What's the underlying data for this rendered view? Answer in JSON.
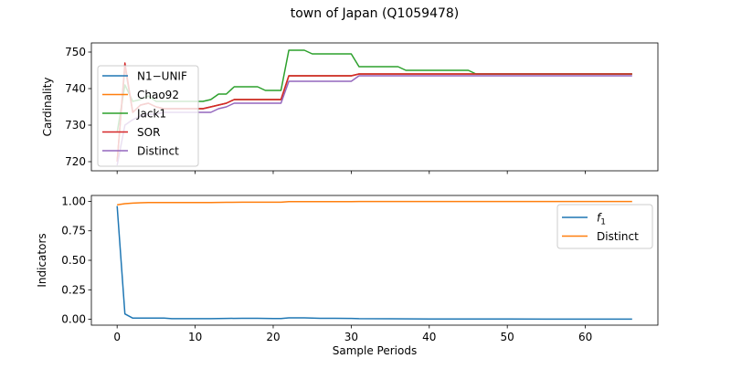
{
  "figure": {
    "title": "town of Japan (Q1059478)"
  },
  "chart_data": [
    {
      "type": "line",
      "ylabel": "Cardinality",
      "xlabel": "",
      "xlim": [
        -3.3,
        69.3
      ],
      "ylim": [
        717.5,
        752.5
      ],
      "yticks": [
        720,
        730,
        740,
        750
      ],
      "xticks": [
        0,
        10,
        20,
        30,
        40,
        50,
        60
      ],
      "show_xticklabels": false,
      "grid": false,
      "legend": "center-left",
      "series": [
        {
          "name": "N1−UNIF",
          "color": "#1f77b4",
          "points": [
            [
              0,
              720
            ],
            [
              1,
              746
            ],
            [
              2,
              733.5
            ],
            [
              3,
              735.5
            ],
            [
              4,
              736
            ],
            [
              5,
              735
            ],
            [
              6,
              734.5
            ],
            [
              7,
              734.5
            ],
            [
              8,
              734.5
            ],
            [
              9,
              734.5
            ],
            [
              10,
              734.5
            ],
            [
              11,
              734.5
            ],
            [
              12,
              735
            ],
            [
              13,
              735.5
            ],
            [
              14,
              736
            ],
            [
              15,
              737
            ],
            [
              16,
              737
            ],
            [
              17,
              737
            ],
            [
              18,
              737
            ],
            [
              19,
              737
            ],
            [
              20,
              737
            ],
            [
              21,
              737
            ],
            [
              22,
              743.5
            ],
            [
              23,
              743.5
            ],
            [
              24,
              743.5
            ],
            [
              25,
              743.5
            ],
            [
              26,
              743.5
            ],
            [
              27,
              743.5
            ],
            [
              28,
              743.5
            ],
            [
              29,
              743.5
            ],
            [
              30,
              743.5
            ],
            [
              31,
              744
            ],
            [
              35,
              744
            ],
            [
              40,
              744
            ],
            [
              45,
              744
            ],
            [
              50,
              744
            ],
            [
              55,
              744
            ],
            [
              60,
              744
            ],
            [
              66,
              744
            ]
          ]
        },
        {
          "name": "Chao92",
          "color": "#ff7f0e",
          "points": [
            [
              0,
              720
            ],
            [
              1,
              746.5
            ],
            [
              2,
              733.5
            ],
            [
              3,
              735.5
            ],
            [
              4,
              736
            ],
            [
              5,
              735
            ],
            [
              6,
              734.5
            ],
            [
              7,
              734.5
            ],
            [
              8,
              734.5
            ],
            [
              9,
              734.5
            ],
            [
              10,
              734.5
            ],
            [
              11,
              734.5
            ],
            [
              12,
              735
            ],
            [
              13,
              735.5
            ],
            [
              14,
              736
            ],
            [
              15,
              737
            ],
            [
              16,
              737
            ],
            [
              17,
              737
            ],
            [
              18,
              737
            ],
            [
              19,
              737
            ],
            [
              20,
              737
            ],
            [
              21,
              737
            ],
            [
              22,
              743.5
            ],
            [
              23,
              743.5
            ],
            [
              24,
              743.5
            ],
            [
              25,
              743.5
            ],
            [
              26,
              743.5
            ],
            [
              27,
              743.5
            ],
            [
              28,
              743.5
            ],
            [
              29,
              743.5
            ],
            [
              30,
              743.5
            ],
            [
              31,
              744
            ],
            [
              35,
              744
            ],
            [
              40,
              744
            ],
            [
              45,
              744
            ],
            [
              50,
              744
            ],
            [
              55,
              744
            ],
            [
              60,
              744
            ],
            [
              66,
              744
            ]
          ]
        },
        {
          "name": "Jack1",
          "color": "#2ca02c",
          "points": [
            [
              0,
              728
            ],
            [
              1,
              741
            ],
            [
              2,
              736.5
            ],
            [
              3,
              737
            ],
            [
              4,
              738
            ],
            [
              5,
              736.5
            ],
            [
              6,
              736.5
            ],
            [
              7,
              736.5
            ],
            [
              8,
              736.5
            ],
            [
              9,
              736.5
            ],
            [
              10,
              736.5
            ],
            [
              11,
              736.5
            ],
            [
              12,
              737
            ],
            [
              13,
              738.5
            ],
            [
              14,
              738.5
            ],
            [
              15,
              740.5
            ],
            [
              16,
              740.5
            ],
            [
              17,
              740.5
            ],
            [
              18,
              740.5
            ],
            [
              19,
              739.5
            ],
            [
              20,
              739.5
            ],
            [
              21,
              739.5
            ],
            [
              22,
              750.5
            ],
            [
              23,
              750.5
            ],
            [
              24,
              750.5
            ],
            [
              25,
              749.5
            ],
            [
              26,
              749.5
            ],
            [
              27,
              749.5
            ],
            [
              28,
              749.5
            ],
            [
              29,
              749.5
            ],
            [
              30,
              749.5
            ],
            [
              31,
              746
            ],
            [
              32,
              746
            ],
            [
              33,
              746
            ],
            [
              34,
              746
            ],
            [
              35,
              746
            ],
            [
              36,
              746
            ],
            [
              37,
              745
            ],
            [
              38,
              745
            ],
            [
              39,
              745
            ],
            [
              40,
              745
            ],
            [
              41,
              745
            ],
            [
              42,
              745
            ],
            [
              43,
              745
            ],
            [
              44,
              745
            ],
            [
              45,
              745
            ],
            [
              46,
              744
            ],
            [
              50,
              744
            ],
            [
              55,
              744
            ],
            [
              60,
              744
            ],
            [
              66,
              744
            ]
          ]
        },
        {
          "name": "SOR",
          "color": "#d62728",
          "points": [
            [
              0,
              720
            ],
            [
              1,
              747
            ],
            [
              2,
              733.5
            ],
            [
              3,
              735.5
            ],
            [
              4,
              736
            ],
            [
              5,
              735
            ],
            [
              6,
              734.5
            ],
            [
              7,
              734.5
            ],
            [
              8,
              734.5
            ],
            [
              9,
              734.5
            ],
            [
              10,
              734.5
            ],
            [
              11,
              734.5
            ],
            [
              12,
              735
            ],
            [
              13,
              735.5
            ],
            [
              14,
              736
            ],
            [
              15,
              737
            ],
            [
              16,
              737
            ],
            [
              17,
              737
            ],
            [
              18,
              737
            ],
            [
              19,
              737
            ],
            [
              20,
              737
            ],
            [
              21,
              737
            ],
            [
              22,
              743.5
            ],
            [
              23,
              743.5
            ],
            [
              24,
              743.5
            ],
            [
              25,
              743.5
            ],
            [
              26,
              743.5
            ],
            [
              27,
              743.5
            ],
            [
              28,
              743.5
            ],
            [
              29,
              743.5
            ],
            [
              30,
              743.5
            ],
            [
              31,
              744
            ],
            [
              35,
              744
            ],
            [
              40,
              744
            ],
            [
              45,
              744
            ],
            [
              50,
              744
            ],
            [
              55,
              744
            ],
            [
              60,
              744
            ],
            [
              66,
              744
            ]
          ]
        },
        {
          "name": "Distinct",
          "color": "#9467bd",
          "points": [
            [
              0,
              719
            ],
            [
              1,
              730
            ],
            [
              2,
              731.5
            ],
            [
              3,
              732.5
            ],
            [
              4,
              733
            ],
            [
              5,
              733
            ],
            [
              6,
              733.5
            ],
            [
              7,
              733.5
            ],
            [
              8,
              733.5
            ],
            [
              9,
              733.5
            ],
            [
              10,
              733.5
            ],
            [
              11,
              733.5
            ],
            [
              12,
              733.5
            ],
            [
              13,
              734.5
            ],
            [
              14,
              735
            ],
            [
              15,
              736
            ],
            [
              16,
              736
            ],
            [
              17,
              736
            ],
            [
              18,
              736
            ],
            [
              19,
              736
            ],
            [
              20,
              736
            ],
            [
              21,
              736
            ],
            [
              22,
              742
            ],
            [
              23,
              742
            ],
            [
              24,
              742
            ],
            [
              25,
              742
            ],
            [
              26,
              742
            ],
            [
              27,
              742
            ],
            [
              28,
              742
            ],
            [
              29,
              742
            ],
            [
              30,
              742
            ],
            [
              31,
              743.5
            ],
            [
              35,
              743.5
            ],
            [
              40,
              743.5
            ],
            [
              45,
              743.5
            ],
            [
              50,
              743.5
            ],
            [
              55,
              743.5
            ],
            [
              60,
              743.5
            ],
            [
              66,
              743.5
            ]
          ]
        }
      ]
    },
    {
      "type": "line",
      "ylabel": "Indicators",
      "xlabel": "Sample Periods",
      "xlim": [
        -3.3,
        69.3
      ],
      "ylim": [
        -0.05,
        1.05
      ],
      "yticks": [
        0.0,
        0.25,
        0.5,
        0.75,
        1.0
      ],
      "ytick_labels": [
        "0.00",
        "0.25",
        "0.50",
        "0.75",
        "1.00"
      ],
      "xticks": [
        0,
        10,
        20,
        30,
        40,
        50,
        60
      ],
      "show_xticklabels": true,
      "grid": false,
      "legend": "upper-right",
      "series": [
        {
          "name": "f",
          "name_sub": "1",
          "color": "#1f77b4",
          "points": [
            [
              0,
              0.96
            ],
            [
              1,
              0.045
            ],
            [
              2,
              0.01
            ],
            [
              3,
              0.01
            ],
            [
              4,
              0.01
            ],
            [
              5,
              0.01
            ],
            [
              6,
              0.01
            ],
            [
              7,
              0.005
            ],
            [
              8,
              0.005
            ],
            [
              10,
              0.005
            ],
            [
              12,
              0.005
            ],
            [
              14,
              0.007
            ],
            [
              16,
              0.008
            ],
            [
              18,
              0.008
            ],
            [
              20,
              0.006
            ],
            [
              21,
              0.006
            ],
            [
              22,
              0.012
            ],
            [
              23,
              0.012
            ],
            [
              24,
              0.012
            ],
            [
              25,
              0.01
            ],
            [
              26,
              0.008
            ],
            [
              28,
              0.008
            ],
            [
              30,
              0.007
            ],
            [
              31,
              0.005
            ],
            [
              35,
              0.004
            ],
            [
              40,
              0.003
            ],
            [
              45,
              0.002
            ],
            [
              50,
              0.002
            ],
            [
              55,
              0.001
            ],
            [
              60,
              0.001
            ],
            [
              66,
              0.001
            ]
          ]
        },
        {
          "name": "Distinct",
          "color": "#ff7f0e",
          "points": [
            [
              0,
              0.97
            ],
            [
              1,
              0.98
            ],
            [
              2,
              0.985
            ],
            [
              3,
              0.988
            ],
            [
              4,
              0.99
            ],
            [
              5,
              0.99
            ],
            [
              6,
              0.99
            ],
            [
              8,
              0.99
            ],
            [
              10,
              0.99
            ],
            [
              12,
              0.99
            ],
            [
              14,
              0.992
            ],
            [
              16,
              0.993
            ],
            [
              18,
              0.993
            ],
            [
              20,
              0.993
            ],
            [
              21,
              0.993
            ],
            [
              22,
              0.997
            ],
            [
              24,
              0.997
            ],
            [
              26,
              0.997
            ],
            [
              28,
              0.997
            ],
            [
              30,
              0.997
            ],
            [
              31,
              0.999
            ],
            [
              35,
              0.999
            ],
            [
              40,
              0.999
            ],
            [
              45,
              0.999
            ],
            [
              50,
              0.999
            ],
            [
              55,
              0.999
            ],
            [
              60,
              0.999
            ],
            [
              66,
              0.999
            ]
          ]
        }
      ]
    }
  ]
}
